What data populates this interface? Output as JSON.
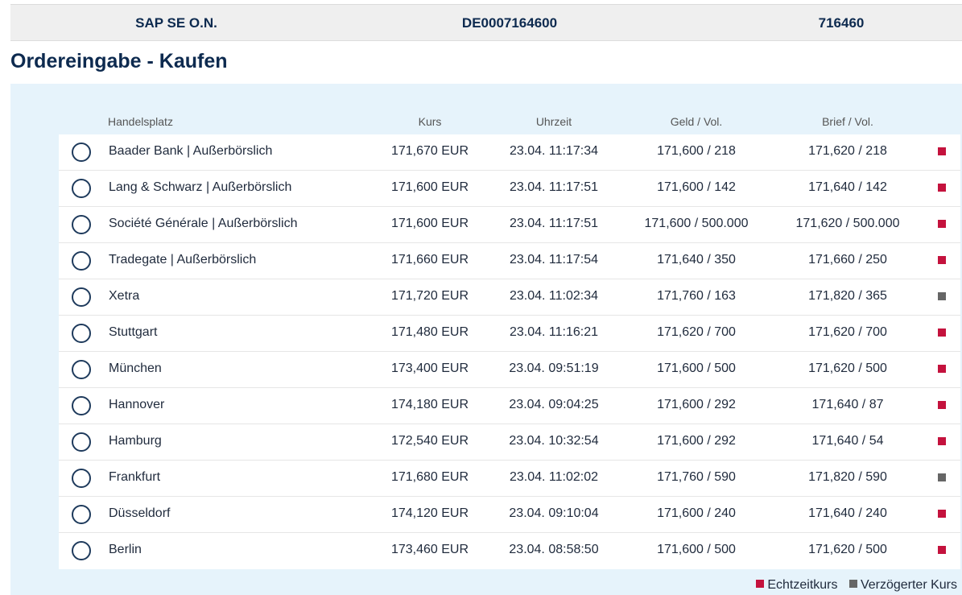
{
  "security": {
    "name": "SAP SE O.N.",
    "isin": "DE0007164600",
    "wkn": "716460"
  },
  "page_title": "Ordereingabe - Kaufen",
  "table": {
    "headers": {
      "venue": "Handelsplatz",
      "price": "Kurs",
      "time": "Uhrzeit",
      "bid": "Geld / Vol.",
      "ask": "Brief / Vol."
    },
    "rows": [
      {
        "venue": "Baader Bank | Außerbörslich",
        "price": "171,670 EUR",
        "time": "23.04. 11:17:34",
        "bid": "171,600 / 218",
        "ask": "171,620 / 218",
        "feed": "realtime"
      },
      {
        "venue": "Lang & Schwarz | Außerbörslich",
        "price": "171,600 EUR",
        "time": "23.04. 11:17:51",
        "bid": "171,600 / 142",
        "ask": "171,640 / 142",
        "feed": "realtime"
      },
      {
        "venue": "Société Générale | Außerbörslich",
        "price": "171,600 EUR",
        "time": "23.04. 11:17:51",
        "bid": "171,600 / 500.000",
        "ask": "171,620 / 500.000",
        "feed": "realtime"
      },
      {
        "venue": "Tradegate | Außerbörslich",
        "price": "171,660 EUR",
        "time": "23.04. 11:17:54",
        "bid": "171,640 / 350",
        "ask": "171,660 / 250",
        "feed": "realtime"
      },
      {
        "venue": "Xetra",
        "price": "171,720 EUR",
        "time": "23.04. 11:02:34",
        "bid": "171,760 / 163",
        "ask": "171,820 / 365",
        "feed": "delayed"
      },
      {
        "venue": "Stuttgart",
        "price": "171,480 EUR",
        "time": "23.04. 11:16:21",
        "bid": "171,620 / 700",
        "ask": "171,620 / 700",
        "feed": "realtime"
      },
      {
        "venue": "München",
        "price": "173,400 EUR",
        "time": "23.04. 09:51:19",
        "bid": "171,600 / 500",
        "ask": "171,620 / 500",
        "feed": "realtime"
      },
      {
        "venue": "Hannover",
        "price": "174,180 EUR",
        "time": "23.04. 09:04:25",
        "bid": "171,600 / 292",
        "ask": "171,640 / 87",
        "feed": "realtime"
      },
      {
        "venue": "Hamburg",
        "price": "172,540 EUR",
        "time": "23.04. 10:32:54",
        "bid": "171,600 / 292",
        "ask": "171,640 / 54",
        "feed": "realtime"
      },
      {
        "venue": "Frankfurt",
        "price": "171,680 EUR",
        "time": "23.04. 11:02:02",
        "bid": "171,760 / 590",
        "ask": "171,820 / 590",
        "feed": "delayed"
      },
      {
        "venue": "Düsseldorf",
        "price": "174,120 EUR",
        "time": "23.04. 09:10:04",
        "bid": "171,600 / 240",
        "ask": "171,640 / 240",
        "feed": "realtime"
      },
      {
        "venue": "Berlin",
        "price": "173,460 EUR",
        "time": "23.04. 08:58:50",
        "bid": "171,600 / 500",
        "ask": "171,620 / 500",
        "feed": "realtime"
      }
    ]
  },
  "legend": {
    "realtime_label": "Echtzeitkurs",
    "delayed_label": "Verzögerter Kurs"
  },
  "colors": {
    "realtime": "#c4123d",
    "delayed": "#666666",
    "brand": "#0d2a4f",
    "panel": "#e6f3fb"
  }
}
